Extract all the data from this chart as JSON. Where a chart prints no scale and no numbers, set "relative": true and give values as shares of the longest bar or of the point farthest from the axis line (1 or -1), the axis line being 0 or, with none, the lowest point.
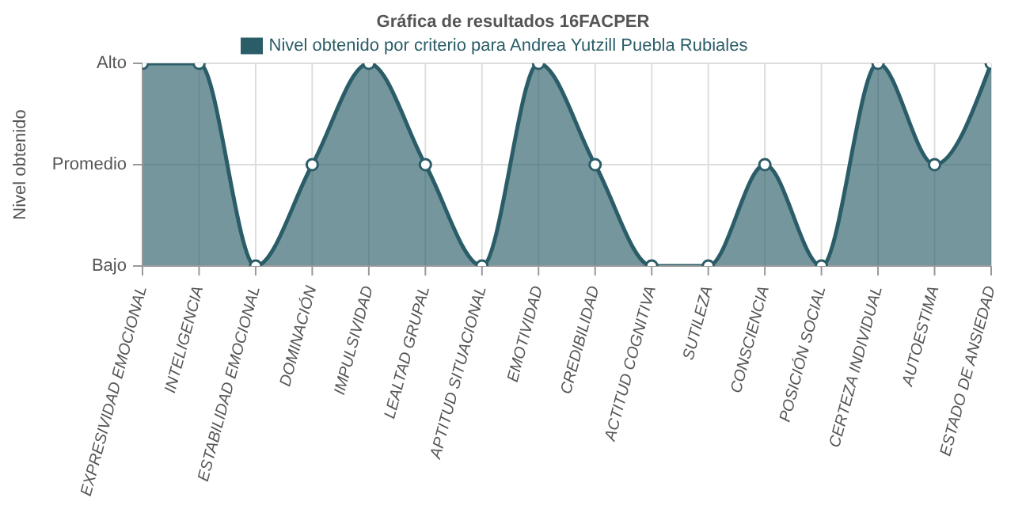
{
  "chart_data": {
    "type": "area",
    "title": "Gráfica de resultados 16FACPER",
    "ylabel": "Nivel obtenido",
    "categories": [
      "EXPRESIVIDAD EMOCIONAL",
      "INTELIGENCIA",
      "ESTABILIDAD EMOCIONAL",
      "DOMINACIÓN",
      "IMPULSIVIDAD",
      "LEALTAD GRUPAL",
      "APTITUD SITUACIONAL",
      "EMOTIVIDAD",
      "CREDIBILIDAD",
      "ACTITUD COGNITIVA",
      "SUTILEZA",
      "CONSCIENCIA",
      "POSICIÓN SOCIAL",
      "CERTEZA INDIVIDUAL",
      "AUTOESTIMA",
      "ESTADO DE ANSIEDAD"
    ],
    "relative": true,
    "annotations": [
      "Bajo",
      "Promedio",
      "Alto"
    ],
    "series": [
      {
        "name": "Nivel obtenido por criterio para Andrea Yutzill Puebla Rubiales",
        "color": "#2b5d68",
        "values": [
          1,
          1,
          0,
          0.5,
          1,
          0.5,
          0,
          1,
          0.5,
          0,
          0,
          0.5,
          0,
          1,
          0.5,
          1
        ]
      }
    ],
    "grid": true,
    "legend": "top",
    "marker": "circle",
    "line_style": "solid"
  }
}
